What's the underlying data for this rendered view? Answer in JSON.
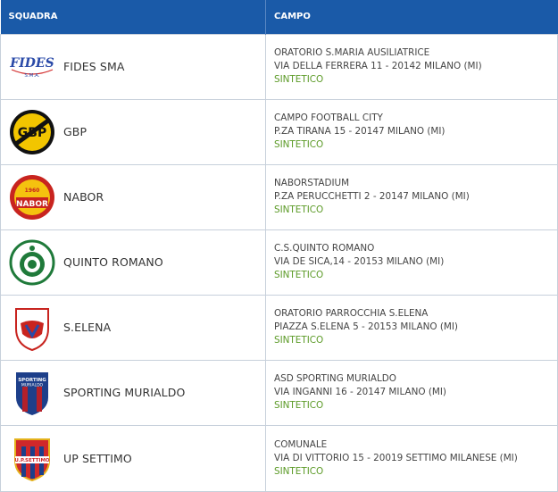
{
  "header": {
    "col_team": "SQUADRA",
    "col_field": "CAMPO"
  },
  "colors": {
    "header_bg": "#1a5aa8",
    "surface_text": "#5b9a26"
  },
  "rows": [
    {
      "team": "FIDES SMA",
      "logo_icon": "fides-sma-logo-icon",
      "logo_text": "FIDES",
      "logo_sub": "S.M.A.",
      "field": "ORATORIO S.MARIA AUSILIATRICE",
      "address": "VIA DELLA FERRERA 11 - 20142 MILANO (MI)",
      "surface": "SINTETICO"
    },
    {
      "team": "GBP",
      "logo_icon": "gbp-logo-icon",
      "logo_text": "GBP",
      "field": "CAMPO FOOTBALL CITY",
      "address": "P.ZA TIRANA 15 - 20147 MILANO (MI)",
      "surface": "SINTETICO"
    },
    {
      "team": "NABOR",
      "logo_icon": "nabor-logo-icon",
      "logo_text": "NABOR",
      "logo_sub": "1960",
      "field": "NABORSTADIUM",
      "address": "P.ZA PERUCCHETTI 2 - 20147 MILANO (MI)",
      "surface": "SINTETICO"
    },
    {
      "team": "QUINTO ROMANO",
      "logo_icon": "quinto-romano-logo-icon",
      "field": "C.S.QUINTO ROMANO",
      "address": "VIA DE SICA,14 - 20153 MILANO (MI)",
      "surface": "SINTETICO"
    },
    {
      "team": "S.ELENA",
      "logo_icon": "s-elena-logo-icon",
      "field": "ORATORIO PARROCCHIA S.ELENA",
      "address": "PIAZZA S.ELENA 5 - 20153 MILANO (MI)",
      "surface": "SINTETICO"
    },
    {
      "team": "SPORTING MURIALDO",
      "logo_icon": "sporting-murialdo-logo-icon",
      "logo_text": "SPORTING",
      "logo_sub": "MURIALDO",
      "field": "ASD SPORTING MURIALDO",
      "address": "VIA INGANNI 16 - 20147 MILANO (MI)",
      "surface": "SINTETICO"
    },
    {
      "team": "UP SETTIMO",
      "logo_icon": "up-settimo-logo-icon",
      "logo_text": "U.P.SETTIMO",
      "field": "COMUNALE",
      "address": "VIA DI VITTORIO 15 - 20019 SETTIMO MILANESE (MI)",
      "surface": "SINTETICO"
    }
  ]
}
